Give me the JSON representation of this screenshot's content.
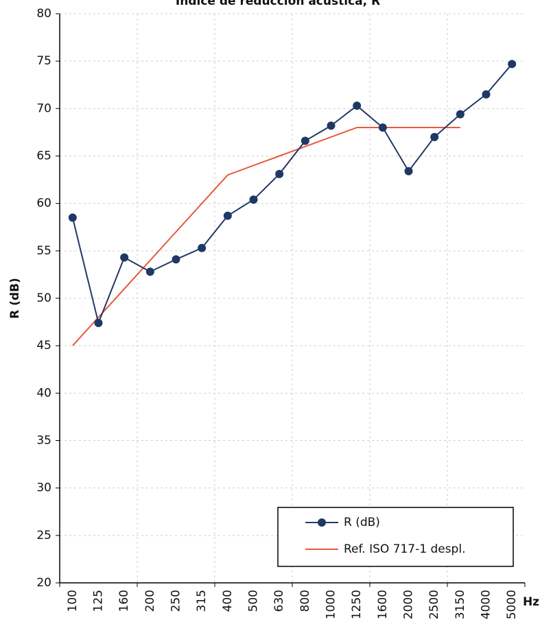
{
  "chart_data": {
    "type": "line",
    "title": "Índice de reducción acústica, R",
    "y_label": "R (dB)",
    "x_label": "Hz",
    "categories": [
      "100",
      "125",
      "160",
      "200",
      "250",
      "315",
      "400",
      "500",
      "630",
      "800",
      "1000",
      "1250",
      "1600",
      "2000",
      "2500",
      "3150",
      "4000",
      "5000"
    ],
    "series": [
      {
        "name": "R (dB)",
        "color": "#1f3864",
        "markers": true,
        "values": [
          58.5,
          47.4,
          54.3,
          52.8,
          54.1,
          55.3,
          58.7,
          60.4,
          63.1,
          66.6,
          68.2,
          70.3,
          68.0,
          63.4,
          67.0,
          69.4,
          71.5,
          74.7
        ]
      },
      {
        "name": "Ref. ISO 717-1 despl.",
        "color": "#e8593a",
        "markers": false,
        "values": [
          45,
          48,
          51,
          54,
          57,
          60,
          63,
          64,
          65,
          66,
          67,
          68,
          68,
          68,
          68,
          68,
          null,
          null
        ]
      }
    ],
    "ylim": [
      20,
      80
    ],
    "yticks": [
      20,
      25,
      30,
      35,
      40,
      45,
      50,
      55,
      60,
      65,
      70,
      75,
      80
    ],
    "grid": true,
    "legend": "lower right"
  }
}
